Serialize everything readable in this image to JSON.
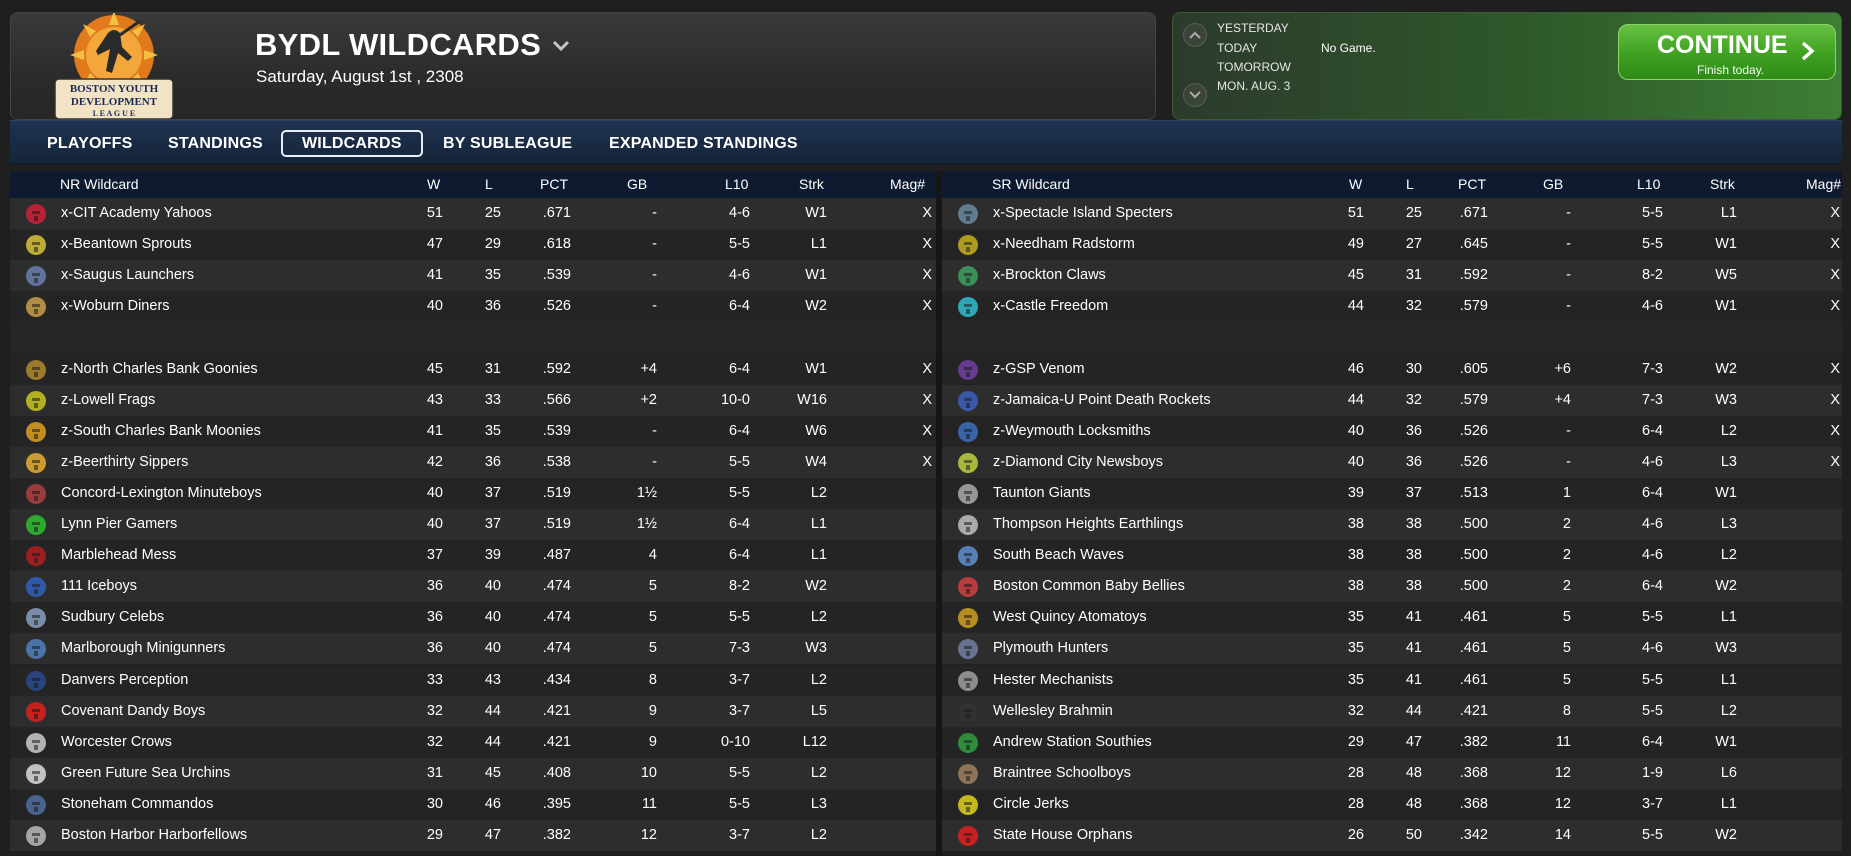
{
  "header": {
    "logo_alt": "BOSTON YOUTH DEVELOPMENT LEAGUE",
    "title": "BYDL WILDCARDS",
    "date": "Saturday, August 1st , 2308"
  },
  "days": {
    "yesterday": "YESTERDAY",
    "today": "TODAY",
    "tomorrow": "TOMORROW",
    "next": "MON. AUG. 3",
    "today_status": "No Game."
  },
  "continue": {
    "label": "CONTINUE",
    "sub": "Finish today."
  },
  "tabs": [
    "PLAYOFFS",
    "STANDINGS",
    "WILDCARDS",
    "BY SUBLEAGUE",
    "EXPANDED STANDINGS"
  ],
  "active_tab": "WILDCARDS",
  "columns": [
    "W",
    "L",
    "PCT",
    "GB",
    "L10",
    "Strk",
    "Mag#"
  ],
  "nr": {
    "title": "NR  Wildcard",
    "rows": [
      {
        "team": "x-CIT Academy Yahoos",
        "w": "51",
        "l": "25",
        "pct": ".671",
        "gb": "-",
        "l10": "4-6",
        "strk": "W1",
        "mag": "X",
        "icon": "skull-icon",
        "color": "#d4203a"
      },
      {
        "team": "x-Beantown Sprouts",
        "w": "47",
        "l": "29",
        "pct": ".618",
        "gb": "-",
        "l10": "5-5",
        "strk": "L1",
        "mag": "X",
        "icon": "sprout-icon",
        "color": "#d9c23a"
      },
      {
        "team": "x-Saugus Launchers",
        "w": "41",
        "l": "35",
        "pct": ".539",
        "gb": "-",
        "l10": "4-6",
        "strk": "W1",
        "mag": "X",
        "icon": "launcher-icon",
        "color": "#6a7fb0"
      },
      {
        "team": "x-Woburn Diners",
        "w": "40",
        "l": "36",
        "pct": ".526",
        "gb": "-",
        "l10": "6-4",
        "strk": "W2",
        "mag": "X",
        "icon": "diner-icon",
        "color": "#c9a04a"
      },
      {
        "gap": true
      },
      {
        "team": "z-North Charles Bank Goonies",
        "w": "45",
        "l": "31",
        "pct": ".592",
        "gb": "+4",
        "l10": "6-4",
        "strk": "W1",
        "mag": "X",
        "icon": "goonie-icon",
        "color": "#b08a2a"
      },
      {
        "team": "z-Lowell Frags",
        "w": "43",
        "l": "33",
        "pct": ".566",
        "gb": "+2",
        "l10": "10-0",
        "strk": "W16",
        "mag": "X",
        "icon": "frag-icon",
        "color": "#c8c820"
      },
      {
        "team": "z-South Charles Bank Moonies",
        "w": "41",
        "l": "35",
        "pct": ".539",
        "gb": "-",
        "l10": "6-4",
        "strk": "W6",
        "mag": "X",
        "icon": "moon-icon",
        "color": "#e0a020"
      },
      {
        "team": "z-Beerthirty Sippers",
        "w": "42",
        "l": "36",
        "pct": ".538",
        "gb": "-",
        "l10": "5-5",
        "strk": "W4",
        "mag": "X",
        "icon": "beer-icon",
        "color": "#e8b030"
      },
      {
        "team": "Concord-Lexington Minuteboys",
        "w": "40",
        "l": "37",
        "pct": ".519",
        "gb": "1½",
        "l10": "5-5",
        "strk": "L2",
        "mag": "",
        "icon": "minuteman-icon",
        "color": "#b04040"
      },
      {
        "team": "Lynn Pier Gamers",
        "w": "40",
        "l": "37",
        "pct": ".519",
        "gb": "1½",
        "l10": "6-4",
        "strk": "L1",
        "mag": "",
        "icon": "gamer-icon",
        "color": "#30c030"
      },
      {
        "team": "Marblehead Mess",
        "w": "37",
        "l": "39",
        "pct": ".487",
        "gb": "4",
        "l10": "6-4",
        "strk": "L1",
        "mag": "",
        "icon": "mess-icon",
        "color": "#b02020"
      },
      {
        "team": "111 Iceboys",
        "w": "36",
        "l": "40",
        "pct": ".474",
        "gb": "5",
        "l10": "8-2",
        "strk": "W2",
        "mag": "",
        "icon": "iceboy-icon",
        "color": "#3060c0"
      },
      {
        "team": "Sudbury Celebs",
        "w": "36",
        "l": "40",
        "pct": ".474",
        "gb": "5",
        "l10": "5-5",
        "strk": "L2",
        "mag": "",
        "icon": "celeb-icon",
        "color": "#8aa0c0"
      },
      {
        "team": "Marlborough Minigunners",
        "w": "36",
        "l": "40",
        "pct": ".474",
        "gb": "5",
        "l10": "7-3",
        "strk": "W3",
        "mag": "",
        "icon": "minigun-icon",
        "color": "#5080c0"
      },
      {
        "team": "Danvers Perception",
        "w": "33",
        "l": "43",
        "pct": ".434",
        "gb": "8",
        "l10": "3-7",
        "strk": "L2",
        "mag": "",
        "icon": "perception-icon",
        "color": "#2a4a8a"
      },
      {
        "team": "Covenant Dandy Boys",
        "w": "32",
        "l": "44",
        "pct": ".421",
        "gb": "9",
        "l10": "3-7",
        "strk": "L5",
        "mag": "",
        "icon": "apple-icon",
        "color": "#e02020"
      },
      {
        "team": "Worcester Crows",
        "w": "32",
        "l": "44",
        "pct": ".421",
        "gb": "9",
        "l10": "0-10",
        "strk": "L12",
        "mag": "",
        "icon": "crow-icon",
        "color": "#cccccc"
      },
      {
        "team": "Green Future Sea Urchins",
        "w": "31",
        "l": "45",
        "pct": ".408",
        "gb": "10",
        "l10": "5-5",
        "strk": "L2",
        "mag": "",
        "icon": "urchin-icon",
        "color": "#dddddd"
      },
      {
        "team": "Stoneham Commandos",
        "w": "30",
        "l": "46",
        "pct": ".395",
        "gb": "11",
        "l10": "5-5",
        "strk": "L3",
        "mag": "",
        "icon": "commando-icon",
        "color": "#5070a0"
      },
      {
        "team": "Boston Harbor Harborfellows",
        "w": "29",
        "l": "47",
        "pct": ".382",
        "gb": "12",
        "l10": "3-7",
        "strk": "L2",
        "mag": "",
        "icon": "harbor-icon",
        "color": "#bbbbbb"
      }
    ]
  },
  "sr": {
    "title": "SR  Wildcard",
    "rows": [
      {
        "team": "x-Spectacle Island Specters",
        "w": "51",
        "l": "25",
        "pct": ".671",
        "gb": "-",
        "l10": "5-5",
        "strk": "L1",
        "mag": "X",
        "icon": "specter-icon",
        "color": "#6a8aa0"
      },
      {
        "team": "x-Needham Radstorm",
        "w": "49",
        "l": "27",
        "pct": ".645",
        "gb": "-",
        "l10": "5-5",
        "strk": "W1",
        "mag": "X",
        "icon": "radiation-icon",
        "color": "#c8b020"
      },
      {
        "team": "x-Brockton Claws",
        "w": "45",
        "l": "31",
        "pct": ".592",
        "gb": "-",
        "l10": "8-2",
        "strk": "W5",
        "mag": "X",
        "icon": "claw-icon",
        "color": "#40a060"
      },
      {
        "team": "x-Castle Freedom",
        "w": "44",
        "l": "32",
        "pct": ".579",
        "gb": "-",
        "l10": "4-6",
        "strk": "W1",
        "mag": "X",
        "icon": "castle-icon",
        "color": "#30c0d0"
      },
      {
        "gap": true
      },
      {
        "team": "z-GSP Venom",
        "w": "46",
        "l": "30",
        "pct": ".605",
        "gb": "+6",
        "l10": "7-3",
        "strk": "W2",
        "mag": "X",
        "icon": "scorpion-icon",
        "color": "#7040a0"
      },
      {
        "team": "z-Jamaica-U Point Death Rockets",
        "w": "44",
        "l": "32",
        "pct": ".579",
        "gb": "+4",
        "l10": "7-3",
        "strk": "W3",
        "mag": "X",
        "icon": "rocket-icon",
        "color": "#4060c0"
      },
      {
        "team": "z-Weymouth Locksmiths",
        "w": "40",
        "l": "36",
        "pct": ".526",
        "gb": "-",
        "l10": "6-4",
        "strk": "L2",
        "mag": "X",
        "icon": "locksmith-icon",
        "color": "#4070c0"
      },
      {
        "team": "z-Diamond City Newsboys",
        "w": "40",
        "l": "36",
        "pct": ".526",
        "gb": "-",
        "l10": "4-6",
        "strk": "L3",
        "mag": "X",
        "icon": "newsboy-icon",
        "color": "#c0d040"
      },
      {
        "team": "Taunton Giants",
        "w": "39",
        "l": "37",
        "pct": ".513",
        "gb": "1",
        "l10": "6-4",
        "strk": "W1",
        "mag": "",
        "icon": "giant-icon",
        "color": "#aaaaaa"
      },
      {
        "team": "Thompson Heights Earthlings",
        "w": "38",
        "l": "38",
        "pct": ".500",
        "gb": "2",
        "l10": "4-6",
        "strk": "L3",
        "mag": "",
        "icon": "earthling-icon",
        "color": "#c0c0c0"
      },
      {
        "team": "South Beach Waves",
        "w": "38",
        "l": "38",
        "pct": ".500",
        "gb": "2",
        "l10": "4-6",
        "strk": "L2",
        "mag": "",
        "icon": "wave-icon",
        "color": "#6090d0"
      },
      {
        "team": "Boston Common Baby Bellies",
        "w": "38",
        "l": "38",
        "pct": ".500",
        "gb": "2",
        "l10": "6-4",
        "strk": "W2",
        "mag": "",
        "icon": "baby-icon",
        "color": "#d04040"
      },
      {
        "team": "West Quincy Atomatoys",
        "w": "35",
        "l": "41",
        "pct": ".461",
        "gb": "5",
        "l10": "5-5",
        "strk": "L1",
        "mag": "",
        "icon": "atomatoy-icon",
        "color": "#d0a020"
      },
      {
        "team": "Plymouth Hunters",
        "w": "35",
        "l": "41",
        "pct": ".461",
        "gb": "5",
        "l10": "4-6",
        "strk": "W3",
        "mag": "",
        "icon": "hunter-icon",
        "color": "#7080a0"
      },
      {
        "team": "Hester Mechanists",
        "w": "35",
        "l": "41",
        "pct": ".461",
        "gb": "5",
        "l10": "5-5",
        "strk": "L1",
        "mag": "",
        "icon": "mechanist-icon",
        "color": "#a0a0a0"
      },
      {
        "team": "Wellesley Brahmin",
        "w": "32",
        "l": "44",
        "pct": ".421",
        "gb": "8",
        "l10": "5-5",
        "strk": "L2",
        "mag": "",
        "icon": "brahmin-icon",
        "color": "#333333"
      },
      {
        "team": "Andrew Station Southies",
        "w": "29",
        "l": "47",
        "pct": ".382",
        "gb": "11",
        "l10": "6-4",
        "strk": "W1",
        "mag": "",
        "icon": "southie-icon",
        "color": "#30a040"
      },
      {
        "team": "Braintree Schoolboys",
        "w": "28",
        "l": "48",
        "pct": ".368",
        "gb": "12",
        "l10": "1-9",
        "strk": "L6",
        "mag": "",
        "icon": "schoolboy-icon",
        "color": "#a08060"
      },
      {
        "team": "Circle Jerks",
        "w": "28",
        "l": "48",
        "pct": ".368",
        "gb": "12",
        "l10": "3-7",
        "strk": "L1",
        "mag": "",
        "icon": "circle-icon",
        "color": "#e0d020"
      },
      {
        "team": "State House Orphans",
        "w": "26",
        "l": "50",
        "pct": ".342",
        "gb": "14",
        "l10": "5-5",
        "strk": "W2",
        "mag": "",
        "icon": "orphan-icon",
        "color": "#e02020"
      }
    ]
  },
  "colors": {
    "accent_green": "#3fa021",
    "tab_bar": "#1a2c46",
    "header_bar": "#0e1a30",
    "row_odd": "#2d2d2d",
    "row_even": "#242424"
  }
}
